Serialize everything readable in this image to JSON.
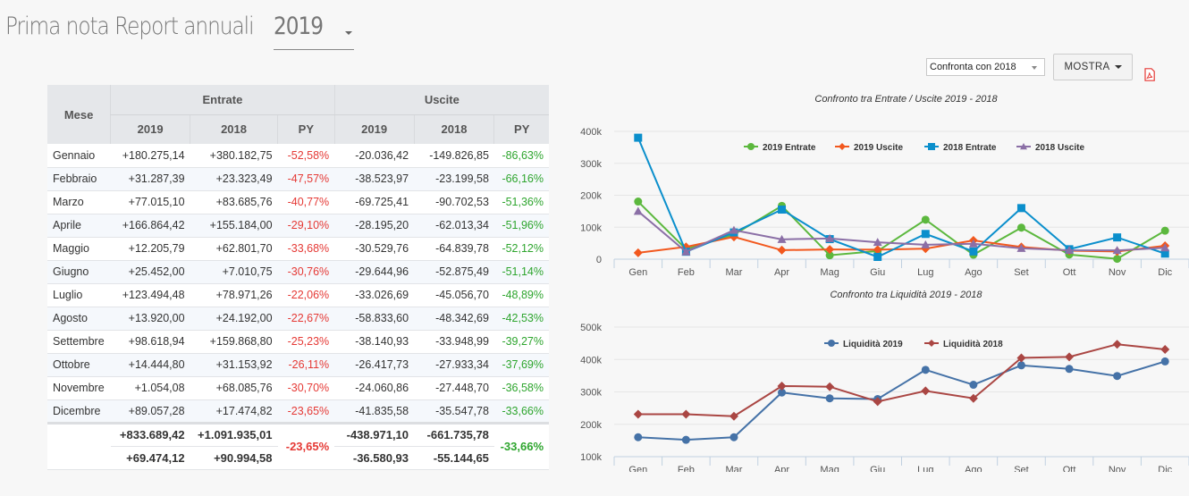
{
  "header": {
    "title": "Prima nota Report annuali",
    "year": "2019"
  },
  "controls": {
    "compare_select": "Confronta con 2018",
    "show_button": "MOSTRA",
    "pdf_icon": "pdf-icon"
  },
  "table": {
    "month_header": "Mese",
    "groups": [
      "Entrate",
      "Uscite"
    ],
    "subheaders": [
      "2019",
      "2018",
      "PY",
      "2019",
      "2018",
      "PY"
    ],
    "rows": [
      {
        "month": "Gennaio",
        "e2019": "+180.275,14",
        "e2018": "+380.182,75",
        "epy": "-52,58%",
        "u2019": "-20.036,42",
        "u2018": "-149.826,85",
        "upy": "-86,63%"
      },
      {
        "month": "Febbraio",
        "e2019": "+31.287,39",
        "e2018": "+23.323,49",
        "epy": "-47,57%",
        "u2019": "-38.523,97",
        "u2018": "-23.199,58",
        "upy": "-66,16%"
      },
      {
        "month": "Marzo",
        "e2019": "+77.015,10",
        "e2018": "+83.685,76",
        "epy": "-40,77%",
        "u2019": "-69.725,41",
        "u2018": "-90.702,53",
        "upy": "-51,36%"
      },
      {
        "month": "Aprile",
        "e2019": "+166.864,42",
        "e2018": "+155.184,00",
        "epy": "-29,10%",
        "u2019": "-28.195,20",
        "u2018": "-62.013,34",
        "upy": "-51,96%"
      },
      {
        "month": "Maggio",
        "e2019": "+12.205,79",
        "e2018": "+62.801,70",
        "epy": "-33,68%",
        "u2019": "-30.529,76",
        "u2018": "-64.839,78",
        "upy": "-52,12%"
      },
      {
        "month": "Giugno",
        "e2019": "+25.452,00",
        "e2018": "+7.010,75",
        "epy": "-30,76%",
        "u2019": "-29.644,96",
        "u2018": "-52.875,49",
        "upy": "-51,14%"
      },
      {
        "month": "Luglio",
        "e2019": "+123.494,48",
        "e2018": "+78.971,26",
        "epy": "-22,06%",
        "u2019": "-33.026,69",
        "u2018": "-45.056,70",
        "upy": "-48,89%"
      },
      {
        "month": "Agosto",
        "e2019": "+13.920,00",
        "e2018": "+24.192,00",
        "epy": "-22,67%",
        "u2019": "-58.833,60",
        "u2018": "-48.342,69",
        "upy": "-42,53%"
      },
      {
        "month": "Settembre",
        "e2019": "+98.618,94",
        "e2018": "+159.868,80",
        "epy": "-25,23%",
        "u2019": "-38.140,93",
        "u2018": "-33.948,99",
        "upy": "-39,27%"
      },
      {
        "month": "Ottobre",
        "e2019": "+14.444,80",
        "e2018": "+31.153,92",
        "epy": "-26,11%",
        "u2019": "-26.417,73",
        "u2018": "-27.933,34",
        "upy": "-37,69%"
      },
      {
        "month": "Novembre",
        "e2019": "+1.054,08",
        "e2018": "+68.085,76",
        "epy": "-30,70%",
        "u2019": "-24.060,86",
        "u2018": "-27.448,70",
        "upy": "-36,58%"
      },
      {
        "month": "Dicembre",
        "e2019": "+89.057,28",
        "e2018": "+17.474,82",
        "epy": "-23,65%",
        "u2019": "-41.835,58",
        "u2018": "-35.547,78",
        "upy": "-33,66%"
      }
    ],
    "totals": {
      "e2019": "+833.689,42",
      "e2018": "+1.091.935,01",
      "epy": "-23,65%",
      "u2019": "-438.971,10",
      "u2018": "-661.735,78",
      "upy": "-33,66%"
    },
    "averages": {
      "e2019": "+69.474,12",
      "e2018": "+90.994,58",
      "u2019": "-36.580,93",
      "u2018": "-55.144,65"
    },
    "colors": {
      "negative": "#e53935",
      "positive": "#2ea52e"
    }
  },
  "chart_data": [
    {
      "type": "line",
      "title": "Confronto tra Entrate / Uscite 2019 - 2018",
      "categories": [
        "Gen",
        "Feb",
        "Mar",
        "Apr",
        "Mag",
        "Giu",
        "Lug",
        "Ago",
        "Set",
        "Ott",
        "Nov",
        "Dic"
      ],
      "ylim": [
        0,
        400000
      ],
      "yticks": [
        0,
        100000,
        200000,
        300000,
        400000
      ],
      "ytick_labels": [
        "0",
        "100k",
        "200k",
        "300k",
        "400k"
      ],
      "grid": true,
      "legend": "top-center",
      "series": [
        {
          "name": "2019 Entrate",
          "color": "#5cb83e",
          "marker": "circle",
          "values": [
            180275,
            31287,
            77015,
            166864,
            12206,
            25452,
            123494,
            13920,
            98619,
            14445,
            1054,
            89057
          ]
        },
        {
          "name": "2019 Uscite",
          "color": "#f2581e",
          "marker": "diamond",
          "values": [
            20036,
            38524,
            69725,
            28195,
            30530,
            29645,
            33027,
            58834,
            38141,
            26418,
            24061,
            41836
          ]
        },
        {
          "name": "2018 Entrate",
          "color": "#0b8fcc",
          "marker": "square",
          "values": [
            380183,
            23323,
            83686,
            155184,
            62802,
            7011,
            78971,
            24192,
            159869,
            31154,
            68086,
            17475
          ]
        },
        {
          "name": "2018 Uscite",
          "color": "#8b6fa6",
          "marker": "triangle",
          "values": [
            149827,
            23200,
            90703,
            62013,
            64840,
            52875,
            45057,
            48343,
            33949,
            27933,
            27449,
            35548
          ]
        }
      ]
    },
    {
      "type": "line",
      "title": "Confronto tra Liquidità 2019 - 2018",
      "categories": [
        "Gen",
        "Feb",
        "Mar",
        "Apr",
        "Mag",
        "Giu",
        "Lug",
        "Ago",
        "Set",
        "Ott",
        "Nov",
        "Dic"
      ],
      "ylim": [
        100000,
        500000
      ],
      "yticks": [
        100000,
        200000,
        300000,
        400000,
        500000
      ],
      "ytick_labels": [
        "100k",
        "200k",
        "300k",
        "400k",
        "500k"
      ],
      "grid": true,
      "legend": "top-center",
      "series": [
        {
          "name": "Liquidità 2019",
          "color": "#4572a7",
          "marker": "circle",
          "values": [
            160000,
            152000,
            160000,
            298000,
            280000,
            278000,
            368000,
            322000,
            382000,
            371000,
            349000,
            394000
          ]
        },
        {
          "name": "Liquidità 2018",
          "color": "#aa4643",
          "marker": "diamond",
          "values": [
            231000,
            231000,
            225000,
            318000,
            316000,
            270000,
            303000,
            280000,
            405000,
            408000,
            447000,
            431000
          ]
        }
      ]
    }
  ]
}
